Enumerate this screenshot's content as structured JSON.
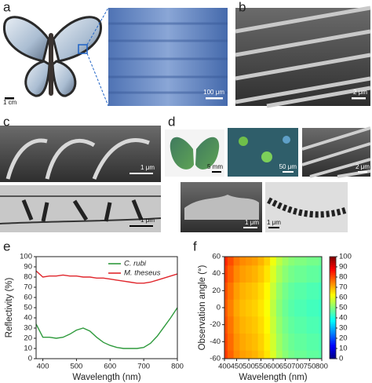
{
  "panels": [
    {
      "label": "a",
      "scale_bars": [
        "1 cm",
        "100 μm"
      ]
    },
    {
      "label": "b",
      "scale_bars": [
        "2 μm"
      ]
    },
    {
      "label": "c",
      "scale_bars": [
        "1 μm",
        "1 μm"
      ]
    },
    {
      "label": "d",
      "scale_bars": [
        "5 mm",
        "50 μm",
        "2 μm",
        "1 μm",
        "1 μm"
      ]
    }
  ],
  "chart_data": [
    {
      "type": "line",
      "panel_label": "e",
      "x_label": "Wavelength (nm)",
      "y_label": "Reflectivity (%)",
      "x": [
        380,
        400,
        420,
        440,
        460,
        480,
        500,
        520,
        540,
        560,
        580,
        600,
        620,
        640,
        660,
        680,
        700,
        720,
        740,
        760,
        780,
        800
      ],
      "series": [
        {
          "name": "C. rubi",
          "color": "#2e9a3c",
          "values": [
            34,
            21,
            21,
            20,
            21,
            24,
            28,
            30,
            27,
            21,
            16,
            13,
            11,
            10,
            10,
            10,
            11,
            15,
            22,
            31,
            40,
            50
          ]
        },
        {
          "name": "M. theseus",
          "color": "#e0262c",
          "values": [
            86,
            80,
            81,
            81,
            82,
            81,
            81,
            80,
            80,
            79,
            79,
            78,
            77,
            76,
            75,
            74,
            74,
            75,
            77,
            79,
            81,
            83
          ]
        }
      ],
      "xlim": [
        380,
        800
      ],
      "xticks": [
        400,
        500,
        600,
        700,
        800
      ],
      "ylim": [
        0,
        100
      ],
      "yticks": [
        0,
        10,
        20,
        30,
        40,
        50,
        60,
        70,
        80,
        90,
        100
      ],
      "legend": "upper right"
    },
    {
      "type": "heatmap",
      "panel_label": "f",
      "x_label": "Wavelength (nm)",
      "y_label": "Observation angle (°)",
      "x": [
        400,
        425,
        450,
        475,
        500,
        525,
        550,
        575,
        600,
        625,
        650,
        675,
        700,
        725,
        750,
        775,
        800
      ],
      "y": [
        -60,
        -40,
        -20,
        0,
        20,
        40,
        60
      ],
      "z": [
        [
          82,
          78,
          74,
          72,
          71,
          70,
          68,
          65,
          59,
          54,
          51,
          49,
          48,
          48,
          47,
          47,
          46
        ],
        [
          81,
          77,
          73,
          71,
          70,
          69,
          67,
          64,
          58,
          53,
          50,
          48,
          47,
          47,
          46,
          46,
          45
        ],
        [
          80,
          76,
          72,
          70,
          69,
          68,
          66,
          63,
          57,
          52,
          49,
          47,
          46,
          46,
          45,
          45,
          44
        ],
        [
          79,
          75,
          71,
          69,
          68,
          67,
          65,
          62,
          56,
          51,
          48,
          46,
          45,
          45,
          44,
          44,
          43
        ],
        [
          80,
          76,
          72,
          70,
          69,
          68,
          66,
          63,
          57,
          52,
          49,
          47,
          46,
          46,
          45,
          45,
          44
        ],
        [
          82,
          78,
          74,
          72,
          71,
          70,
          68,
          65,
          59,
          54,
          51,
          49,
          48,
          48,
          47,
          47,
          46
        ],
        [
          84,
          80,
          76,
          74,
          73,
          72,
          70,
          67,
          61,
          56,
          53,
          51,
          50,
          50,
          49,
          49,
          48
        ]
      ],
      "xlim": [
        400,
        800
      ],
      "xticks": [
        400,
        450,
        500,
        550,
        600,
        650,
        700,
        750,
        800
      ],
      "ylim": [
        -60,
        60
      ],
      "yticks": [
        -60,
        -40,
        -20,
        0,
        20,
        40,
        60
      ],
      "colormap": "jet",
      "clim": [
        0,
        100
      ],
      "colorbar_ticks": [
        0,
        10,
        20,
        30,
        40,
        50,
        60,
        70,
        80,
        90,
        100
      ]
    }
  ]
}
